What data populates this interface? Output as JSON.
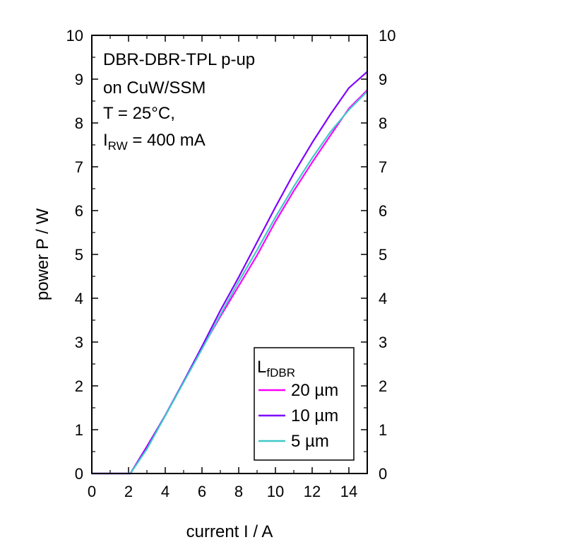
{
  "chart_data": {
    "type": "line",
    "xlabel": "current I / A",
    "ylabel": "power P / W",
    "xlim": [
      0,
      15
    ],
    "ylim": [
      0,
      10
    ],
    "x_ticks": [
      "0",
      "2",
      "4",
      "6",
      "8",
      "10",
      "12",
      "14"
    ],
    "x_tick_values": [
      0,
      2,
      4,
      6,
      8,
      10,
      12,
      14
    ],
    "y_ticks": [
      "0",
      "1",
      "2",
      "3",
      "4",
      "5",
      "6",
      "7",
      "8",
      "9",
      "10"
    ],
    "y_tick_values": [
      0,
      1,
      2,
      3,
      4,
      5,
      6,
      7,
      8,
      9,
      10
    ],
    "annotation": {
      "line1": "DBR-DBR-TPL p-up",
      "line2": "on CuW/SSM",
      "line3": "T = 25°C,",
      "line4_main": "I",
      "line4_sub": "RW",
      "line4_rest": " = 400 mA"
    },
    "legend": {
      "title_main": "L",
      "title_sub": "fDBR",
      "placement": "bottom-right"
    },
    "series": [
      {
        "name": "20 µm",
        "color": "#ff00ff",
        "x": [
          0,
          2.1,
          3,
          4,
          5,
          6,
          7,
          8,
          9,
          10,
          11,
          12,
          13,
          14,
          15
        ],
        "y": [
          0,
          0,
          0.62,
          1.32,
          2.1,
          2.86,
          3.58,
          4.28,
          4.98,
          5.75,
          6.45,
          7.1,
          7.72,
          8.33,
          8.75
        ]
      },
      {
        "name": "10 µm",
        "color": "#7f00ff",
        "x": [
          0,
          2.1,
          3,
          4,
          5,
          6,
          7,
          8,
          9,
          10,
          11,
          12,
          13,
          14,
          15
        ],
        "y": [
          0,
          0,
          0.6,
          1.33,
          2.1,
          2.9,
          3.72,
          4.48,
          5.28,
          6.08,
          6.85,
          7.55,
          8.2,
          8.8,
          9.17
        ]
      },
      {
        "name": "5 µm",
        "color": "#40c8c8",
        "x": [
          0,
          2.1,
          3,
          4,
          5,
          6,
          7,
          8,
          9,
          10,
          11,
          12,
          13,
          14,
          15
        ],
        "y": [
          0,
          0,
          0.56,
          1.32,
          2.08,
          2.84,
          3.62,
          4.38,
          5.1,
          5.85,
          6.55,
          7.2,
          7.8,
          8.3,
          8.72
        ]
      }
    ]
  }
}
